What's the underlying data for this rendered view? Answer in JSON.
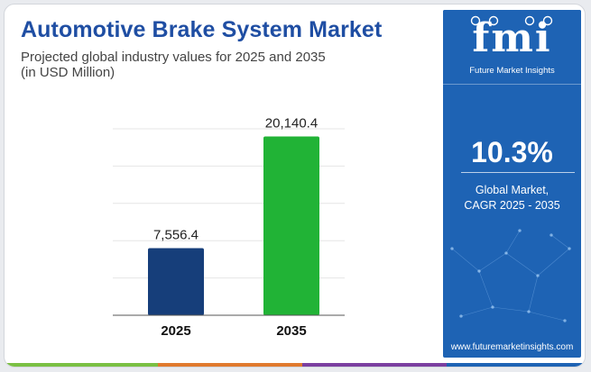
{
  "header": {
    "title": "Automotive Brake System Market",
    "subtitle_line1": "Projected global industry values for 2025 and 2035",
    "subtitle_line2": "(in USD Million)"
  },
  "chart_data": {
    "type": "bar",
    "title": "Automotive Brake System Market",
    "categories": [
      "2025",
      "2035"
    ],
    "values": [
      7556.4,
      20140.4
    ],
    "value_labels": [
      "7,556.4",
      "20,140.4"
    ],
    "colors": [
      "#163e7a",
      "#21b336"
    ],
    "ylim": [
      0,
      21000
    ],
    "grid": true,
    "xlabel": "",
    "ylabel": ""
  },
  "side_panel": {
    "logo": "fmi",
    "logo_caption": "Future Market Insights",
    "cagr_value": "10.3%",
    "cagr_label_line1": "Global Market,",
    "cagr_label_line2": "CAGR 2025 - 2035",
    "website": "www.futuremarketinsights.com",
    "background_color": "#1e63b4"
  },
  "footer_strip_colors": [
    "#7ac043",
    "#e07a2e",
    "#7b3fa0",
    "#1e63b4"
  ]
}
